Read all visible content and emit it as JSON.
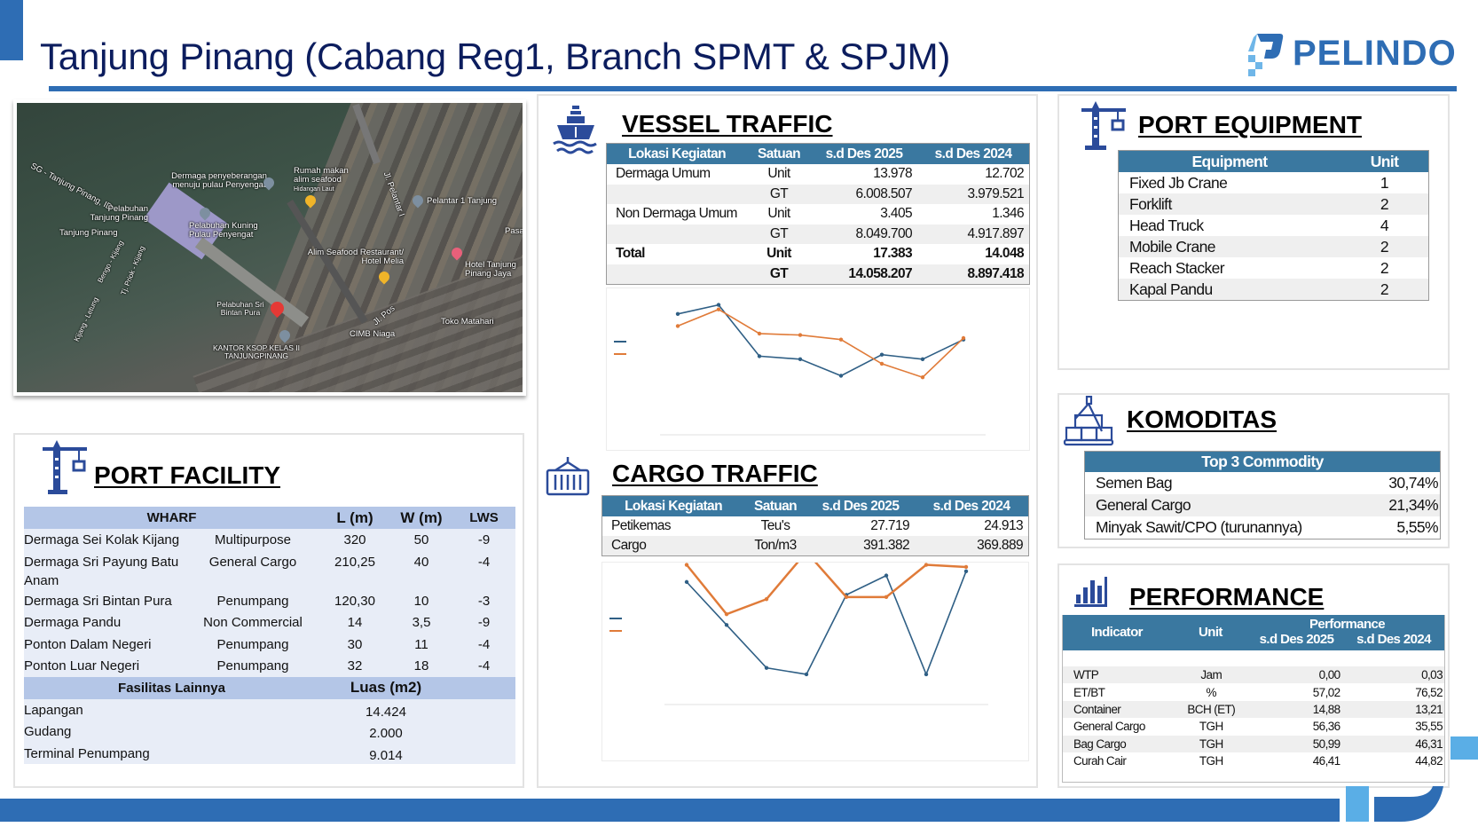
{
  "header": {
    "title": "Tanjung Pinang (Cabang Reg1, Branch SPMT & SPJM)",
    "logo_text": "PELINDO",
    "brand_color": "#2e6db4",
    "title_color": "#0c1d5e"
  },
  "map": {
    "labels": [
      "SG - Tanjung Pinang, ID",
      "Dermaga penyeberangan menuju pulau Penyengat",
      "Rumah makan alim seafood",
      "Hidangan Laut",
      "Pelantar 1 Tanjung",
      "Pelabuhan Tanjung Pinang",
      "Tanjung Pinang",
      "Pelabuhan Kuning Pulau Penyengat",
      "Alim Seafood Restaurant/ Hotel Melia",
      "Hotel Tanjung Pinang Jaya",
      "Pelabuhan Sri Bintan Pura",
      "KANTOR KSOP KELAS II TANJUNGPINANG",
      "CIMB Niaga",
      "Toko Matahari",
      "Jl. Pos",
      "Jl. Pelantar I",
      "Bengo - Kijang",
      "Tj. Priok - Kijang",
      "Kijang - Letung",
      "Pasa"
    ]
  },
  "port_facility": {
    "title": "PORT FACILITY",
    "headers": {
      "wharf": "WHARF",
      "l": "L (m)",
      "w": "W (m)",
      "lws": "LWS"
    },
    "rows": [
      {
        "name": "Dermaga Sei Kolak Kijang",
        "type": "Multipurpose",
        "l": "320",
        "w": "50",
        "lws": "-9"
      },
      {
        "name": "Dermaga Sri Payung Batu Anam",
        "type": "General Cargo",
        "l": "210,25",
        "w": "40",
        "lws": "-4"
      },
      {
        "name": "Dermaga Sri Bintan Pura",
        "type": "Penumpang",
        "l": "120,30",
        "w": "10",
        "lws": "-3"
      },
      {
        "name": "Dermaga Pandu",
        "type": "Non Commercial",
        "l": "14",
        "w": "3,5",
        "lws": "-9"
      },
      {
        "name": "Ponton Dalam Negeri",
        "type": "Penumpang",
        "l": "30",
        "w": "11",
        "lws": "-4"
      },
      {
        "name": "Ponton Luar Negeri",
        "type": "Penumpang",
        "l": "32",
        "w": "18",
        "lws": "-4"
      }
    ],
    "other_headers": {
      "name": "Fasilitas Lainnya",
      "area": "Luas (m2)"
    },
    "other_rows": [
      {
        "name": "Lapangan",
        "area": "14.424"
      },
      {
        "name": "Gudang",
        "area": "2.000"
      },
      {
        "name": "Terminal Penumpang",
        "area": "9.014"
      }
    ]
  },
  "vessel": {
    "title": "VESSEL TRAFFIC",
    "headers": [
      "Lokasi Kegiatan",
      "Satuan",
      "s.d Des 2025",
      "s.d Des 2024"
    ],
    "rows": [
      [
        "Dermaga Umum",
        "Unit",
        "13.978",
        "12.702"
      ],
      [
        "",
        "GT",
        "6.008.507",
        "3.979.521"
      ],
      [
        "Non Dermaga Umum",
        "Unit",
        "3.405",
        "1.346"
      ],
      [
        "",
        "GT",
        "8.049.700",
        "4.917.897"
      ],
      [
        "Total",
        "Unit",
        "17.383",
        "14.048"
      ],
      [
        "",
        "GT",
        "14.058.207",
        "8.897.418"
      ]
    ]
  },
  "cargo": {
    "title": "CARGO TRAFFIC",
    "headers": [
      "Lokasi Kegiatan",
      "Satuan",
      "s.d Des 2025",
      "s.d Des 2024"
    ],
    "rows": [
      [
        "Petikemas",
        "Teu's",
        "27.719",
        "24.913"
      ],
      [
        "Cargo",
        "Ton/m3",
        "391.382",
        "369.889"
      ]
    ]
  },
  "equipment": {
    "title": "PORT EQUIPMENT",
    "headers": [
      "Equipment",
      "Unit"
    ],
    "rows": [
      [
        "Fixed Jb Crane",
        "1"
      ],
      [
        "Forklift",
        "2"
      ],
      [
        "Head Truck",
        "4"
      ],
      [
        "Mobile Crane",
        "2"
      ],
      [
        "Reach Stacker",
        "2"
      ],
      [
        "Kapal Pandu",
        "2"
      ]
    ]
  },
  "komoditas": {
    "title": "KOMODITAS",
    "header": "Top 3 Commodity",
    "rows": [
      [
        "Semen Bag",
        "30,74%"
      ],
      [
        "General Cargo",
        "21,34%"
      ],
      [
        "Minyak Sawit/CPO (turunannya)",
        "5,55%"
      ]
    ]
  },
  "performance": {
    "title": "PERFORMANCE",
    "headers": {
      "indicator": "Indicator",
      "unit": "Unit",
      "group": "Performance",
      "y2025": "s.d Des 2025",
      "y2024": "s.d Des 2024"
    },
    "rows": [
      [
        "WTP",
        "Jam",
        "0,00",
        "0,03"
      ],
      [
        "ET/BT",
        "%",
        "57,02",
        "76,52"
      ],
      [
        "Container",
        "BCH (ET)",
        "14,88",
        "13,21"
      ],
      [
        "General Cargo",
        "TGH",
        "56,36",
        "35,55"
      ],
      [
        "Bag Cargo",
        "TGH",
        "50,99",
        "46,31"
      ],
      [
        "Curah Cair",
        "TGH",
        "46,41",
        "44,82"
      ]
    ]
  },
  "chart_data": [
    {
      "type": "line",
      "title": "",
      "xlabel": "",
      "ylabel": "",
      "grid": false,
      "legend": "left",
      "axis_labels_visible": false,
      "x": [
        1,
        2,
        3,
        4,
        5,
        6,
        7,
        8
      ],
      "series": [
        {
          "color": "#2f5f85",
          "values": [
            86,
            92,
            58,
            56,
            45,
            59,
            56,
            69
          ]
        },
        {
          "color": "#e07b39",
          "values": [
            78,
            89,
            73,
            72,
            69,
            53,
            44,
            70
          ]
        }
      ],
      "ylim": [
        0,
        100
      ]
    },
    {
      "type": "line",
      "title": "",
      "xlabel": "",
      "ylabel": "",
      "grid": false,
      "legend": "left",
      "axis_labels_visible": false,
      "x": [
        1,
        2,
        3,
        4,
        5,
        6,
        7,
        8
      ],
      "series": [
        {
          "color": "#2f5f85",
          "values": [
            86,
            66,
            46,
            43,
            80,
            89,
            43,
            91
          ]
        },
        {
          "color": "#e07b39",
          "values": [
            94,
            71,
            78,
            100,
            79,
            79,
            94,
            93
          ]
        }
      ],
      "ylim": [
        0,
        100
      ]
    }
  ]
}
